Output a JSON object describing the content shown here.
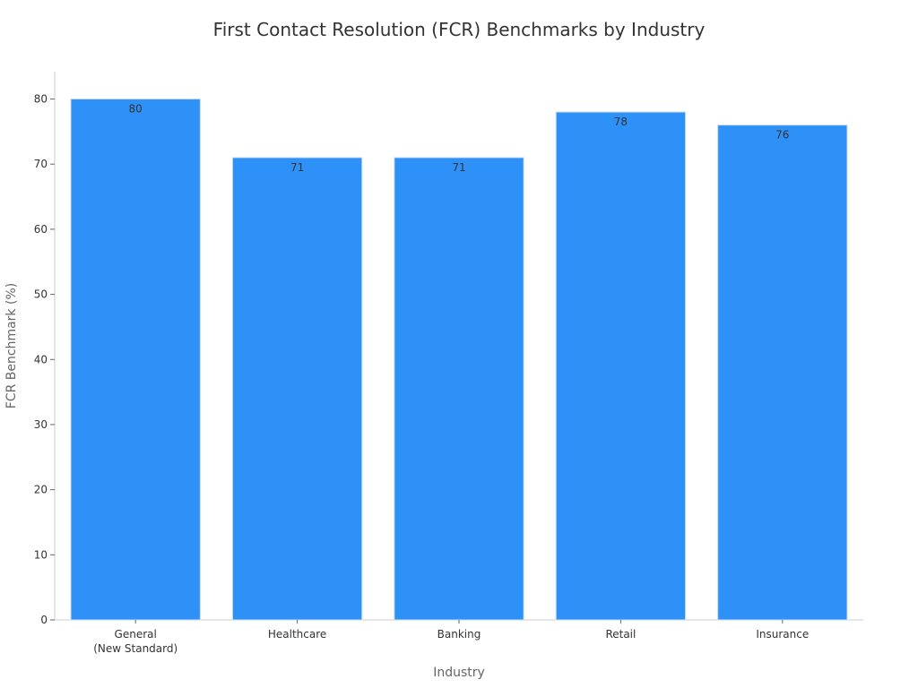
{
  "chart_data": {
    "type": "bar",
    "title": "First Contact Resolution (FCR) Benchmarks by Industry",
    "xlabel": "Industry",
    "ylabel": "FCR Benchmark (%)",
    "categories": [
      [
        "General",
        "(New Standard)"
      ],
      [
        "Healthcare"
      ],
      [
        "Banking"
      ],
      [
        "Retail"
      ],
      [
        "Insurance"
      ]
    ],
    "values": [
      80,
      71,
      71,
      78,
      76
    ],
    "ylim": [
      0,
      84.2
    ],
    "yticks": [
      0,
      10,
      20,
      30,
      40,
      50,
      60,
      70,
      80
    ],
    "bar_color": "#2e91f8",
    "bar_edge_color": "#c9d9ea",
    "axis_color": "#cccccc",
    "grid": false,
    "legend": "none"
  }
}
